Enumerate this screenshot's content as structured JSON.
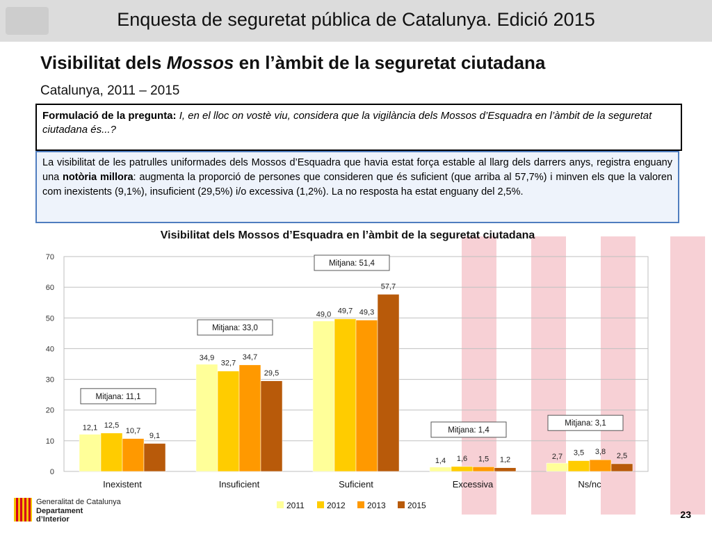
{
  "header": {
    "title": "Enquesta de seguretat pública de Catalunya. Edició 2015"
  },
  "slide": {
    "title_pre": "Visibilitat dels ",
    "title_em": "Mossos",
    "title_post": " en l’àmbit de la seguretat ciutadana",
    "subtitle": "Catalunya, 2011 – 2015"
  },
  "question": {
    "label": "Formulació de la pregunta:",
    "text": " I, en el lloc on vostè viu, considera que la vigilància dels Mossos d’Esquadra en l’àmbit de la seguretat ciutadana és...?"
  },
  "summary": {
    "part1": "La visibilitat de les patrulles uniformades dels Mossos d’Esquadra que havia estat força estable al llarg dels darrers anys, registra enguany una ",
    "bold": "notòria millora",
    "part2": ": augmenta la proporció de persones que consideren que és suficient (que arriba al 57,7%) i minven els que la valoren com inexistents (9,1%), insuficient (29,5%) i/o excessiva (1,2%). La no resposta ha estat enguany del 2,5%."
  },
  "footer": {
    "page_number": "23",
    "org_line1": "Generalitat de Catalunya",
    "org_line2": "Departament",
    "org_line3": "d’Interior"
  },
  "chart_data": {
    "type": "bar",
    "title": "Visibilitat dels Mossos d’Esquadra en l’àmbit de la seguretat ciutadana",
    "categories": [
      "Inexistent",
      "Insuficient",
      "Suficient",
      "Excessiva",
      "Ns/nc"
    ],
    "series": [
      {
        "name": "2011",
        "color": "#ffff99",
        "values": [
          12.1,
          34.9,
          49.0,
          1.4,
          2.7
        ],
        "labels": [
          "12,1",
          "34,9",
          "49,0",
          "1,4",
          "2,7"
        ]
      },
      {
        "name": "2012",
        "color": "#ffcc00",
        "values": [
          12.5,
          32.7,
          49.7,
          1.6,
          3.5
        ],
        "labels": [
          "12,5",
          "32,7",
          "49,7",
          "1,6",
          "3,5"
        ]
      },
      {
        "name": "2013",
        "color": "#ff9900",
        "values": [
          10.7,
          34.7,
          49.3,
          1.5,
          3.8
        ],
        "labels": [
          "10,7",
          "34,7",
          "49,3",
          "1,5",
          "3,8"
        ]
      },
      {
        "name": "2015",
        "color": "#b85a0a",
        "values": [
          9.1,
          29.5,
          57.7,
          1.2,
          2.5
        ],
        "labels": [
          "9,1",
          "29,5",
          "57,7",
          "1,2",
          "2,5"
        ]
      }
    ],
    "annotations": [
      "Mitjana: 11,1",
      "Mitjana: 33,0",
      "Mitjana: 51,4",
      "Mitjana: 1,4",
      "Mitjana: 3,1"
    ],
    "ylim": [
      0,
      70
    ],
    "yticks": [
      0,
      10,
      20,
      30,
      40,
      50,
      60,
      70
    ],
    "grid": true,
    "legend": "bottom"
  }
}
